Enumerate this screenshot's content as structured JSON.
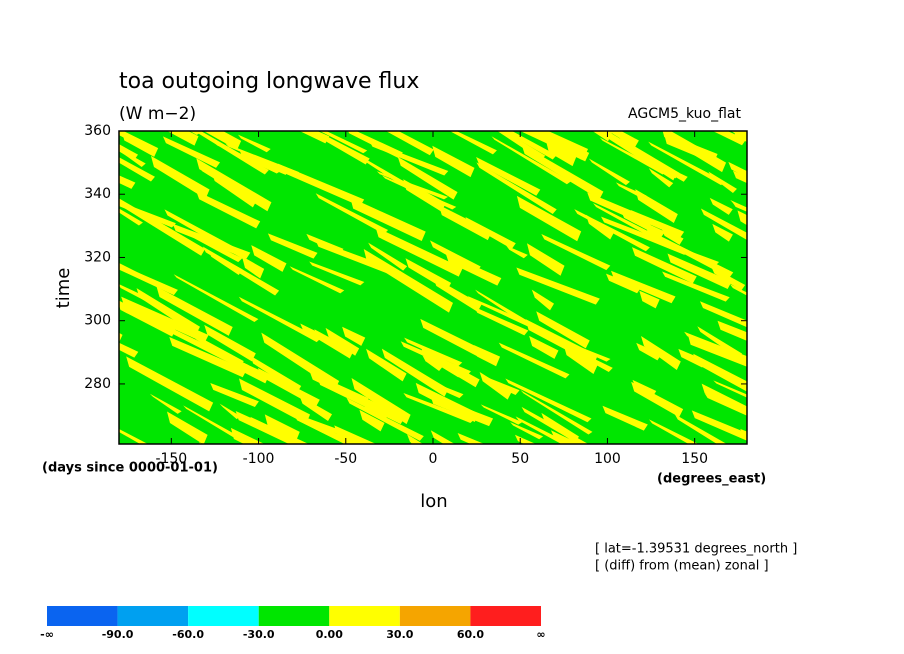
{
  "chart_data": {
    "type": "contour",
    "title": "toa outgoing longwave flux",
    "subtitle": "(W m−2)",
    "dataset": "AGCM5_kuo_flat",
    "xlabel": "lon",
    "ylabel": "time",
    "x_units": "(degrees_east)",
    "y_units": "(days since 0000-01-01)",
    "notes": [
      "[ lat=-1.39531 degrees_north ]",
      "[ (diff) from (mean) zonal ]"
    ],
    "xlim": [
      -180,
      180
    ],
    "xticks": [
      -150,
      -100,
      -50,
      0,
      50,
      100,
      150
    ],
    "ylim": [
      261,
      360
    ],
    "yticks": [
      280,
      300,
      320,
      340,
      360
    ],
    "colorbar": {
      "labels": [
        "-∞",
        "-90.0",
        "-60.0",
        "-30.0",
        "0.00",
        "30.0",
        "60.0",
        "∞"
      ],
      "colors": [
        "#0a64f0",
        "#00a0f0",
        "#00ffff",
        "#00e600",
        "#ffff00",
        "#f5a500",
        "#ff1e1e"
      ]
    }
  }
}
